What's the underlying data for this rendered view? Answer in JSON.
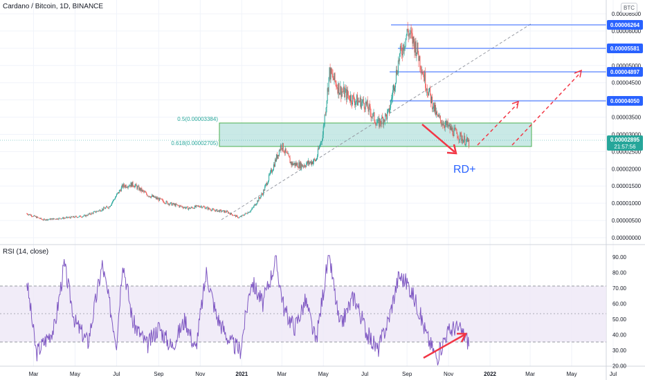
{
  "header": {
    "title": "Cardano / Bitcoin, 1D, BINANCE",
    "currency_badge": "BTC"
  },
  "rsi_panel": {
    "title": "RSI (14, close)"
  },
  "annotations": {
    "fib_05": "0.5(0.00003384)",
    "fib_0618": "0.618(0.00002705)",
    "rd_label": "RD+",
    "countdown": "21:57:56"
  },
  "colors": {
    "up": "#26a69a",
    "down": "#ef5350",
    "zone_fill": "#b2dfdb",
    "zone_border": "#4caf50",
    "level_line": "#2962ff",
    "trend_line": "#9598a1",
    "arrow": "#f23645",
    "rsi_line": "#7e57c2",
    "rsi_band": "#ede7f6",
    "label_blue": "#2962ff",
    "label_green": "#26a69a"
  },
  "chart_data": [
    {
      "type": "candlestick",
      "symbol": "Cardano / Bitcoin",
      "interval": "1D",
      "exchange": "BINANCE",
      "ylim": [
        0,
        6.6e-05
      ],
      "y_ticks": [
        "0.00006500",
        "0.00006000",
        "0.00005500",
        "0.00005000",
        "0.00004500",
        "0.00004000",
        "0.00003500",
        "0.00003000",
        "0.00002500",
        "0.00002000",
        "0.00001500",
        "0.00001000",
        "0.00000500",
        "0.00000000"
      ],
      "x_ticks": [
        "Mar",
        "May",
        "Jul",
        "Sep",
        "Nov",
        "2021",
        "Mar",
        "May",
        "Jul",
        "Sep",
        "Nov",
        "2022",
        "Mar",
        "May",
        "Jul"
      ],
      "path": [
        [
          "2020-02-20",
          7e-06
        ],
        [
          "2020-03-15",
          5.2e-06
        ],
        [
          "2020-04-15",
          5.7e-06
        ],
        [
          "2020-05-15",
          6.3e-06
        ],
        [
          "2020-06-20",
          9e-06
        ],
        [
          "2020-07-10",
          1.5e-05
        ],
        [
          "2020-07-25",
          1.55e-05
        ],
        [
          "2020-08-15",
          1.25e-05
        ],
        [
          "2020-09-15",
          1e-05
        ],
        [
          "2020-10-15",
          8.5e-06
        ],
        [
          "2020-11-01",
          9.2e-06
        ],
        [
          "2020-11-20",
          8e-06
        ],
        [
          "2020-12-10",
          7.5e-06
        ],
        [
          "2020-12-28",
          5.8e-06
        ],
        [
          "2021-01-15",
          8e-06
        ],
        [
          "2021-02-01",
          1.3e-05
        ],
        [
          "2021-02-15",
          2e-05
        ],
        [
          "2021-02-28",
          2.7e-05
        ],
        [
          "2021-03-15",
          2.15e-05
        ],
        [
          "2021-03-31",
          2.1e-05
        ],
        [
          "2021-04-20",
          2.25e-05
        ],
        [
          "2021-04-30",
          3e-05
        ],
        [
          "2021-05-10",
          4.8e-05
        ],
        [
          "2021-05-25",
          4.3e-05
        ],
        [
          "2021-06-15",
          4e-05
        ],
        [
          "2021-07-01",
          3.9e-05
        ],
        [
          "2021-07-20",
          3.3e-05
        ],
        [
          "2021-08-05",
          3.6e-05
        ],
        [
          "2021-08-20",
          5.2e-05
        ],
        [
          "2021-09-02",
          6e-05
        ],
        [
          "2021-09-15",
          5.5e-05
        ],
        [
          "2021-09-30",
          4.4e-05
        ],
        [
          "2021-10-15",
          3.5e-05
        ],
        [
          "2021-11-01",
          3.2e-05
        ],
        [
          "2021-11-20",
          2.9e-05
        ],
        [
          "2021-12-01",
          2.75e-05
        ]
      ],
      "last_price": "0.00002895",
      "horizontal_levels": [
        "0.00006264",
        "0.00005581",
        "0.00004897",
        "0.00004050"
      ],
      "fib_zone": [
        2.705e-05,
        3.384e-05
      ]
    },
    {
      "type": "line",
      "name": "RSI (14, close)",
      "ylim": [
        15,
        93
      ],
      "y_ticks": [
        "90.00",
        "80.00",
        "70.00",
        "60.00",
        "50.00",
        "40.00",
        "30.00",
        "20.00"
      ],
      "bands": [
        30,
        70
      ],
      "midline": 50,
      "path": [
        [
          "2020-02-20",
          75
        ],
        [
          "2020-03-05",
          28
        ],
        [
          "2020-04-01",
          45
        ],
        [
          "2020-04-15",
          85
        ],
        [
          "2020-05-01",
          48
        ],
        [
          "2020-05-20",
          35
        ],
        [
          "2020-06-10",
          85
        ],
        [
          "2020-07-01",
          35
        ],
        [
          "2020-07-10",
          88
        ],
        [
          "2020-07-25",
          48
        ],
        [
          "2020-08-15",
          33
        ],
        [
          "2020-09-01",
          45
        ],
        [
          "2020-09-20",
          32
        ],
        [
          "2020-10-10",
          50
        ],
        [
          "2020-10-25",
          30
        ],
        [
          "2020-11-10",
          80
        ],
        [
          "2020-11-25",
          52
        ],
        [
          "2020-12-15",
          35
        ],
        [
          "2020-12-30",
          30
        ],
        [
          "2021-01-15",
          75
        ],
        [
          "2021-02-01",
          60
        ],
        [
          "2021-02-20",
          88
        ],
        [
          "2021-03-05",
          55
        ],
        [
          "2021-03-20",
          45
        ],
        [
          "2021-04-05",
          62
        ],
        [
          "2021-04-20",
          35
        ],
        [
          "2021-05-05",
          80
        ],
        [
          "2021-05-10",
          90
        ],
        [
          "2021-05-25",
          45
        ],
        [
          "2021-06-15",
          65
        ],
        [
          "2021-07-05",
          40
        ],
        [
          "2021-07-20",
          30
        ],
        [
          "2021-08-05",
          50
        ],
        [
          "2021-08-20",
          78
        ],
        [
          "2021-09-02",
          73
        ],
        [
          "2021-09-15",
          60
        ],
        [
          "2021-10-01",
          38
        ],
        [
          "2021-10-15",
          25
        ],
        [
          "2021-10-28",
          40
        ],
        [
          "2021-11-10",
          45
        ],
        [
          "2021-11-20",
          42
        ],
        [
          "2021-12-01",
          35
        ]
      ]
    }
  ]
}
